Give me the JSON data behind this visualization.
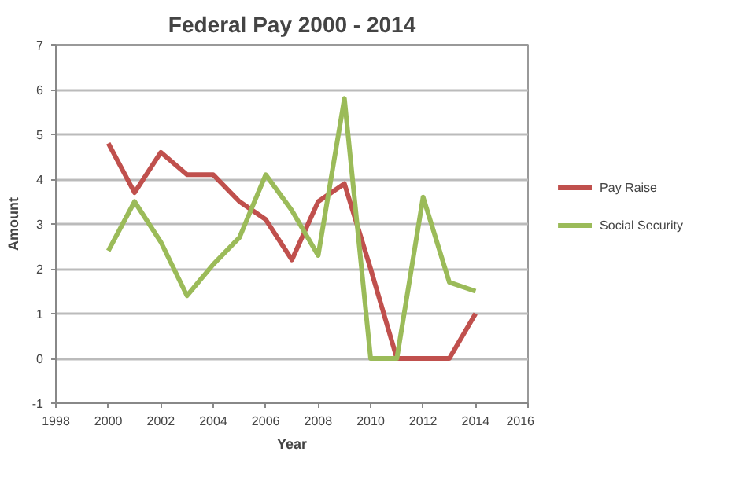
{
  "chart_data": {
    "type": "line",
    "title": "Federal Pay 2000 - 2014",
    "xlabel": "Year",
    "ylabel": "Amount",
    "x": [
      2000,
      2001,
      2002,
      2003,
      2004,
      2005,
      2006,
      2007,
      2008,
      2009,
      2010,
      2011,
      2012,
      2013,
      2014
    ],
    "series": [
      {
        "name": "Pay Raise",
        "color": "#c0504d",
        "values": [
          4.8,
          3.7,
          4.6,
          4.1,
          4.1,
          3.5,
          3.1,
          2.2,
          3.5,
          3.9,
          2.0,
          0,
          0,
          0,
          1.0
        ]
      },
      {
        "name": "Social Security",
        "color": "#9bbb59",
        "values": [
          2.4,
          3.5,
          2.6,
          1.4,
          2.1,
          2.7,
          4.1,
          3.3,
          2.3,
          5.8,
          0,
          0,
          3.6,
          1.7,
          1.5
        ]
      }
    ],
    "xlim": [
      1998,
      2016
    ],
    "xticks": [
      1998,
      2000,
      2002,
      2004,
      2006,
      2008,
      2010,
      2012,
      2014,
      2016
    ],
    "ylim": [
      -1,
      7
    ],
    "yticks": [
      -1,
      0,
      1,
      2,
      3,
      4,
      5,
      6,
      7
    ],
    "grid": "y",
    "legend": "right",
    "marker": "none",
    "line_style": "solid"
  }
}
